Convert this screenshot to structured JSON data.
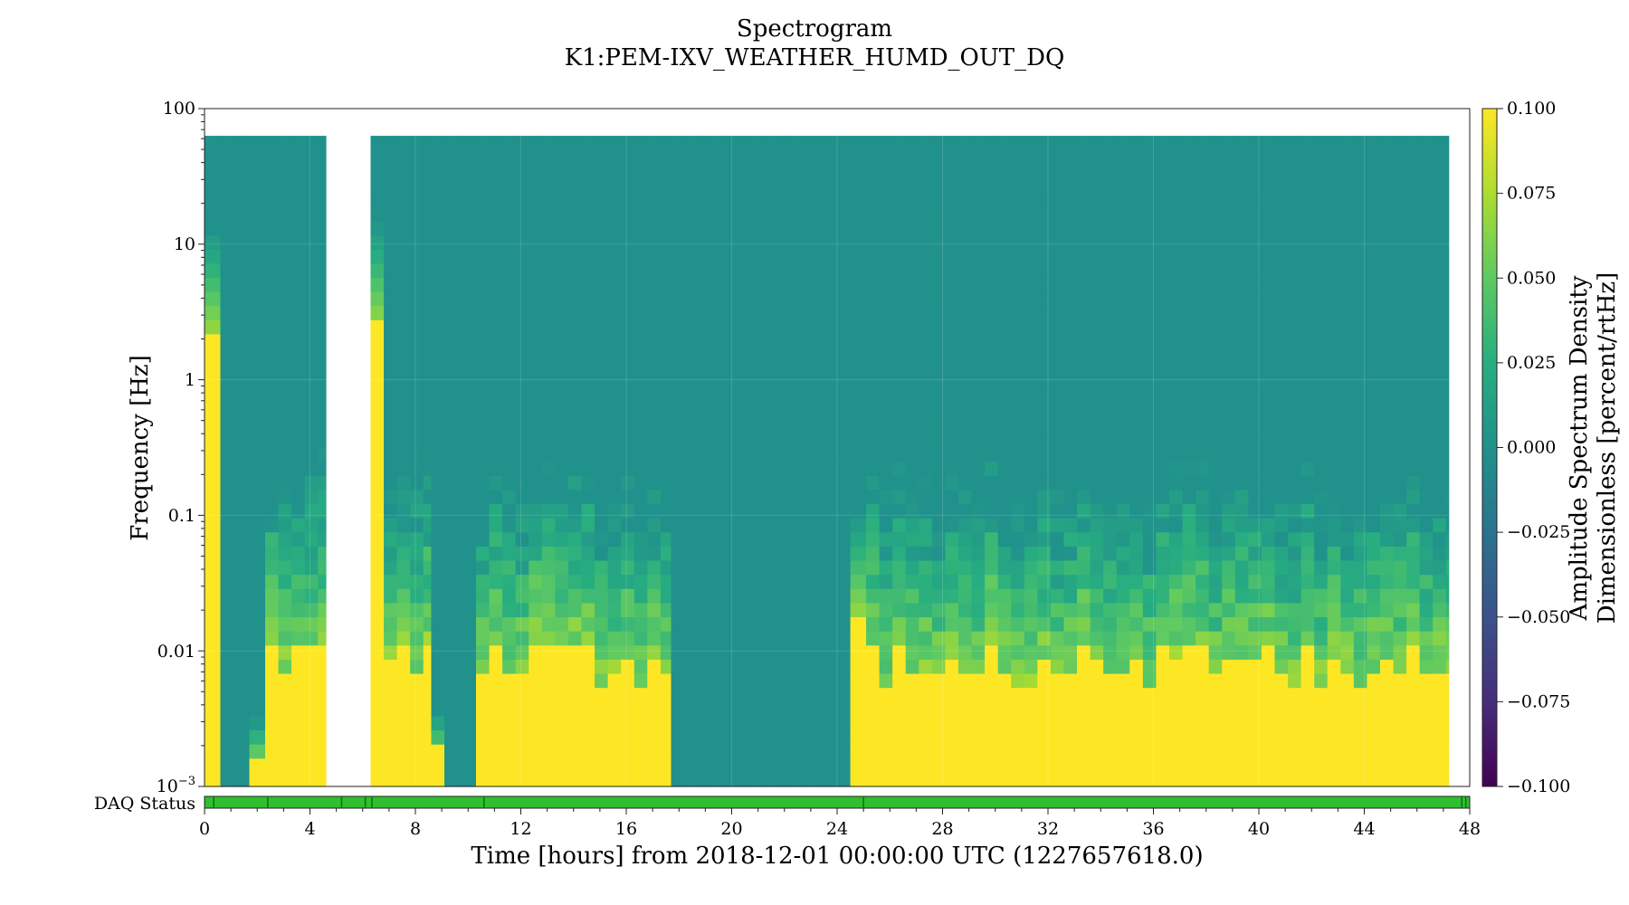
{
  "chart_data": {
    "type": "heatmap",
    "title": "Spectrogram",
    "subtitle": "K1:PEM-IXV_WEATHER_HUMD_OUT_DQ",
    "xlabel": "Time [hours] from 2018-12-01 00:00:00 UTC (1227657618.0)",
    "ylabel": "Frequency [Hz]",
    "xlim": [
      0,
      48
    ],
    "x_ticks": [
      "0",
      "4",
      "8",
      "12",
      "16",
      "20",
      "24",
      "28",
      "32",
      "36",
      "40",
      "44",
      "48"
    ],
    "y_scale": "log",
    "ylim": [
      0.001,
      100
    ],
    "y_ticks": [
      "10",
      "1",
      "0.1",
      "0.01"
    ],
    "y_tick_bottom": {
      "base": "10",
      "exp": "−3"
    },
    "y_tick_top": "100",
    "freq_max": 63,
    "colorbar": {
      "label_line1": "Amplitude Spectrum Density",
      "label_line2": "Dimensionless [percent/rtHz]",
      "range": [
        -0.1,
        0.1
      ],
      "ticks": [
        "−0.100",
        "−0.075",
        "−0.050",
        "−0.025",
        "0.000",
        "0.025",
        "0.050",
        "0.075",
        "0.100"
      ],
      "colormap": "viridis"
    },
    "gaps_hours": [
      [
        4.6,
        6.3
      ]
    ],
    "segments": [
      {
        "start": 0.0,
        "end": 0.6,
        "floor_hz": 2.2,
        "profile": "edge_high"
      },
      {
        "start": 0.6,
        "end": 1.7,
        "floor_hz": null,
        "profile": "zero"
      },
      {
        "start": 1.7,
        "end": 2.3,
        "floor_hz": 0.0018,
        "profile": "low"
      },
      {
        "start": 2.3,
        "end": 4.6,
        "floor_hz": 0.009,
        "profile": "noisy"
      },
      {
        "start": 6.3,
        "end": 6.8,
        "floor_hz": 2.5,
        "profile": "edge_high"
      },
      {
        "start": 6.8,
        "end": 8.6,
        "floor_hz": 0.01,
        "profile": "noisy"
      },
      {
        "start": 8.6,
        "end": 9.1,
        "floor_hz": 0.002,
        "profile": "low"
      },
      {
        "start": 9.1,
        "end": 10.3,
        "floor_hz": null,
        "profile": "zero"
      },
      {
        "start": 10.3,
        "end": 17.7,
        "floor_hz": 0.008,
        "profile": "noisy"
      },
      {
        "start": 17.7,
        "end": 24.5,
        "floor_hz": null,
        "profile": "zero"
      },
      {
        "start": 24.5,
        "end": 25.1,
        "floor_hz": 0.018,
        "profile": "spike"
      },
      {
        "start": 25.1,
        "end": 47.2,
        "floor_hz": 0.008,
        "profile": "noisy"
      }
    ],
    "daq_status": {
      "label": "DAQ Status",
      "color": "#2fbf2f",
      "marks_hours": [
        0.35,
        2.4,
        5.2,
        6.1,
        6.35,
        10.6,
        25.0,
        47.7,
        47.85
      ]
    }
  }
}
